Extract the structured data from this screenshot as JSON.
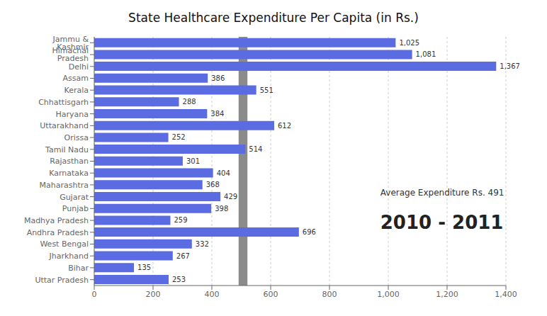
{
  "chart_data": {
    "type": "bar",
    "orientation": "horizontal",
    "title": "State Healthcare Expenditure Per Capita (in Rs.)",
    "categories": [
      "Jammu & Kashmir",
      "Himachal Pradesh",
      "Delhi",
      "Assam",
      "Kerala",
      "Chhattisgarh",
      "Haryana",
      "Uttarakhand",
      "Orissa",
      "Tamil Nadu",
      "Rajasthan",
      "Karnataka",
      "Maharashtra",
      "Gujarat",
      "Punjab",
      "Madhya Pradesh",
      "Andhra Pradesh",
      "West Bengal",
      "Jharkhand",
      "Bihar",
      "Uttar Pradesh"
    ],
    "values": [
      1025,
      1081,
      1367,
      386,
      551,
      288,
      384,
      612,
      252,
      514,
      301,
      404,
      368,
      429,
      398,
      259,
      696,
      332,
      267,
      135,
      253
    ],
    "value_labels": [
      "1,025",
      "1,081",
      "1,367",
      "386",
      "551",
      "288",
      "384",
      "612",
      "252",
      "514",
      "301",
      "404",
      "368",
      "429",
      "398",
      "259",
      "696",
      "332",
      "267",
      "135",
      "253"
    ],
    "data_labels": true,
    "color": "#5B6BE1",
    "average_band": {
      "from": 491,
      "to": 521,
      "color": "#777777"
    },
    "annotations": [
      "Average Expenditure Rs. 491",
      "2010 - 2011"
    ],
    "xlim": [
      0,
      1400
    ],
    "xticks": [
      0,
      200,
      400,
      600,
      800,
      {
        "value": 1000,
        "label": "1,000"
      },
      {
        "value": 1200,
        "label": "1,200"
      },
      {
        "value": 1400,
        "label": "1,400"
      }
    ],
    "grid": true
  }
}
